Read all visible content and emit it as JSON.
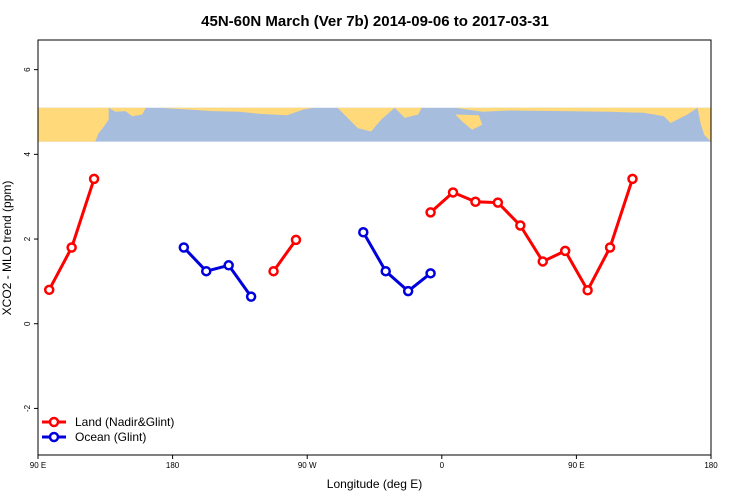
{
  "chart_data": {
    "type": "line",
    "title": "45N-60N March (Ver 7b)   2014-09-06 to 2017-03-31",
    "xlabel": "Longitude (deg E)",
    "ylabel": "XCO2 - MLO trend (ppm)",
    "xlim": [
      90,
      540
    ],
    "ylim": [
      -3.1,
      6.7
    ],
    "x_ticks": [
      {
        "value": 90,
        "label": "90 E"
      },
      {
        "value": 180,
        "label": "180"
      },
      {
        "value": 270,
        "label": "90 W"
      },
      {
        "value": 360,
        "label": "0"
      },
      {
        "value": 450,
        "label": "90 E"
      },
      {
        "value": 540,
        "label": "180"
      }
    ],
    "y_ticks": [
      -2,
      0,
      2,
      4,
      6
    ],
    "map_band": {
      "ymin": 4.3,
      "ymax": 5.1,
      "land_color": "#FFD97A",
      "ocean_color": "#A7BDDE"
    },
    "legend_position": "bottom-left",
    "series": [
      {
        "name": "Land (Nadir&Glint)",
        "color": "#FF0000",
        "segments": [
          [
            [
              97.5,
              0.8
            ],
            [
              112.5,
              1.8
            ],
            [
              127.5,
              3.42
            ]
          ],
          [
            [
              247.5,
              1.24
            ],
            [
              262.5,
              1.98
            ]
          ],
          [
            [
              352.5,
              2.63
            ],
            [
              367.5,
              3.1
            ],
            [
              382.5,
              2.88
            ],
            [
              397.5,
              2.86
            ],
            [
              412.5,
              2.32
            ],
            [
              427.5,
              1.47
            ],
            [
              442.5,
              1.72
            ],
            [
              457.5,
              0.79
            ],
            [
              472.5,
              1.8
            ],
            [
              487.5,
              3.42
            ]
          ]
        ]
      },
      {
        "name": "Ocean (Glint)",
        "color": "#0000DD",
        "segments": [
          [
            [
              187.5,
              1.8
            ],
            [
              202.5,
              1.24
            ],
            [
              217.5,
              1.38
            ],
            [
              232.5,
              0.64
            ]
          ],
          [
            [
              307.5,
              2.16
            ],
            [
              322.5,
              1.24
            ],
            [
              337.5,
              0.77
            ],
            [
              352.5,
              1.19
            ]
          ]
        ]
      }
    ]
  }
}
